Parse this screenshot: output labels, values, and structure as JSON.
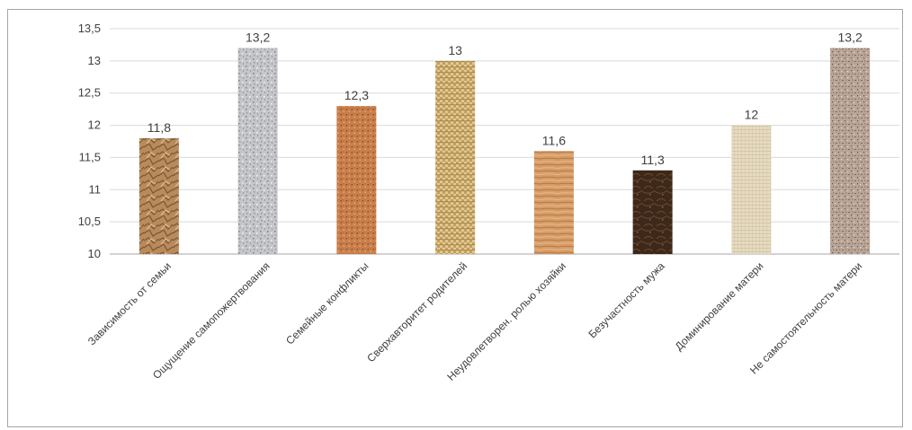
{
  "chart_data": {
    "type": "bar",
    "title": "",
    "xlabel": "",
    "ylabel": "",
    "ylim": [
      10,
      13.5
    ],
    "yticks": [
      "10",
      "10,5",
      "11",
      "11,5",
      "12",
      "12,5",
      "13",
      "13,5"
    ],
    "ytick_values": [
      10,
      10.5,
      11,
      11.5,
      12,
      12.5,
      13,
      13.5
    ],
    "grid": true,
    "legend": "none",
    "categories": [
      "Зависимость от семьи",
      "Ощущение самопожертвования",
      "Семейные конфликты",
      "Сверхавторитет родителей",
      "Неудовлетворен. ролью хозяйки",
      "Безучастность мужа",
      "Доминирование матери",
      "Не самостоятельность матери"
    ],
    "values": [
      11.8,
      13.2,
      12.3,
      13,
      11.6,
      11.3,
      12,
      13.2
    ],
    "data_labels": [
      "11,8",
      "13,2",
      "12,3",
      "13",
      "11,6",
      "11,3",
      "12",
      "13,2"
    ],
    "bar_textures": [
      "crumpled-paper",
      "granite",
      "cork",
      "woven-burlap",
      "wood-grain",
      "dark-marble",
      "linen",
      "speckled-stone"
    ],
    "colors": {
      "gridline": "#d9d9d9",
      "axis": "#a6a6a6",
      "text": "#404040",
      "bars": [
        "#b98b5c",
        "#b9bbbe",
        "#c5804e",
        "#b8975a",
        "#d29a68",
        "#3f2a1d",
        "#e4d8bd",
        "#b5a092"
      ]
    }
  }
}
